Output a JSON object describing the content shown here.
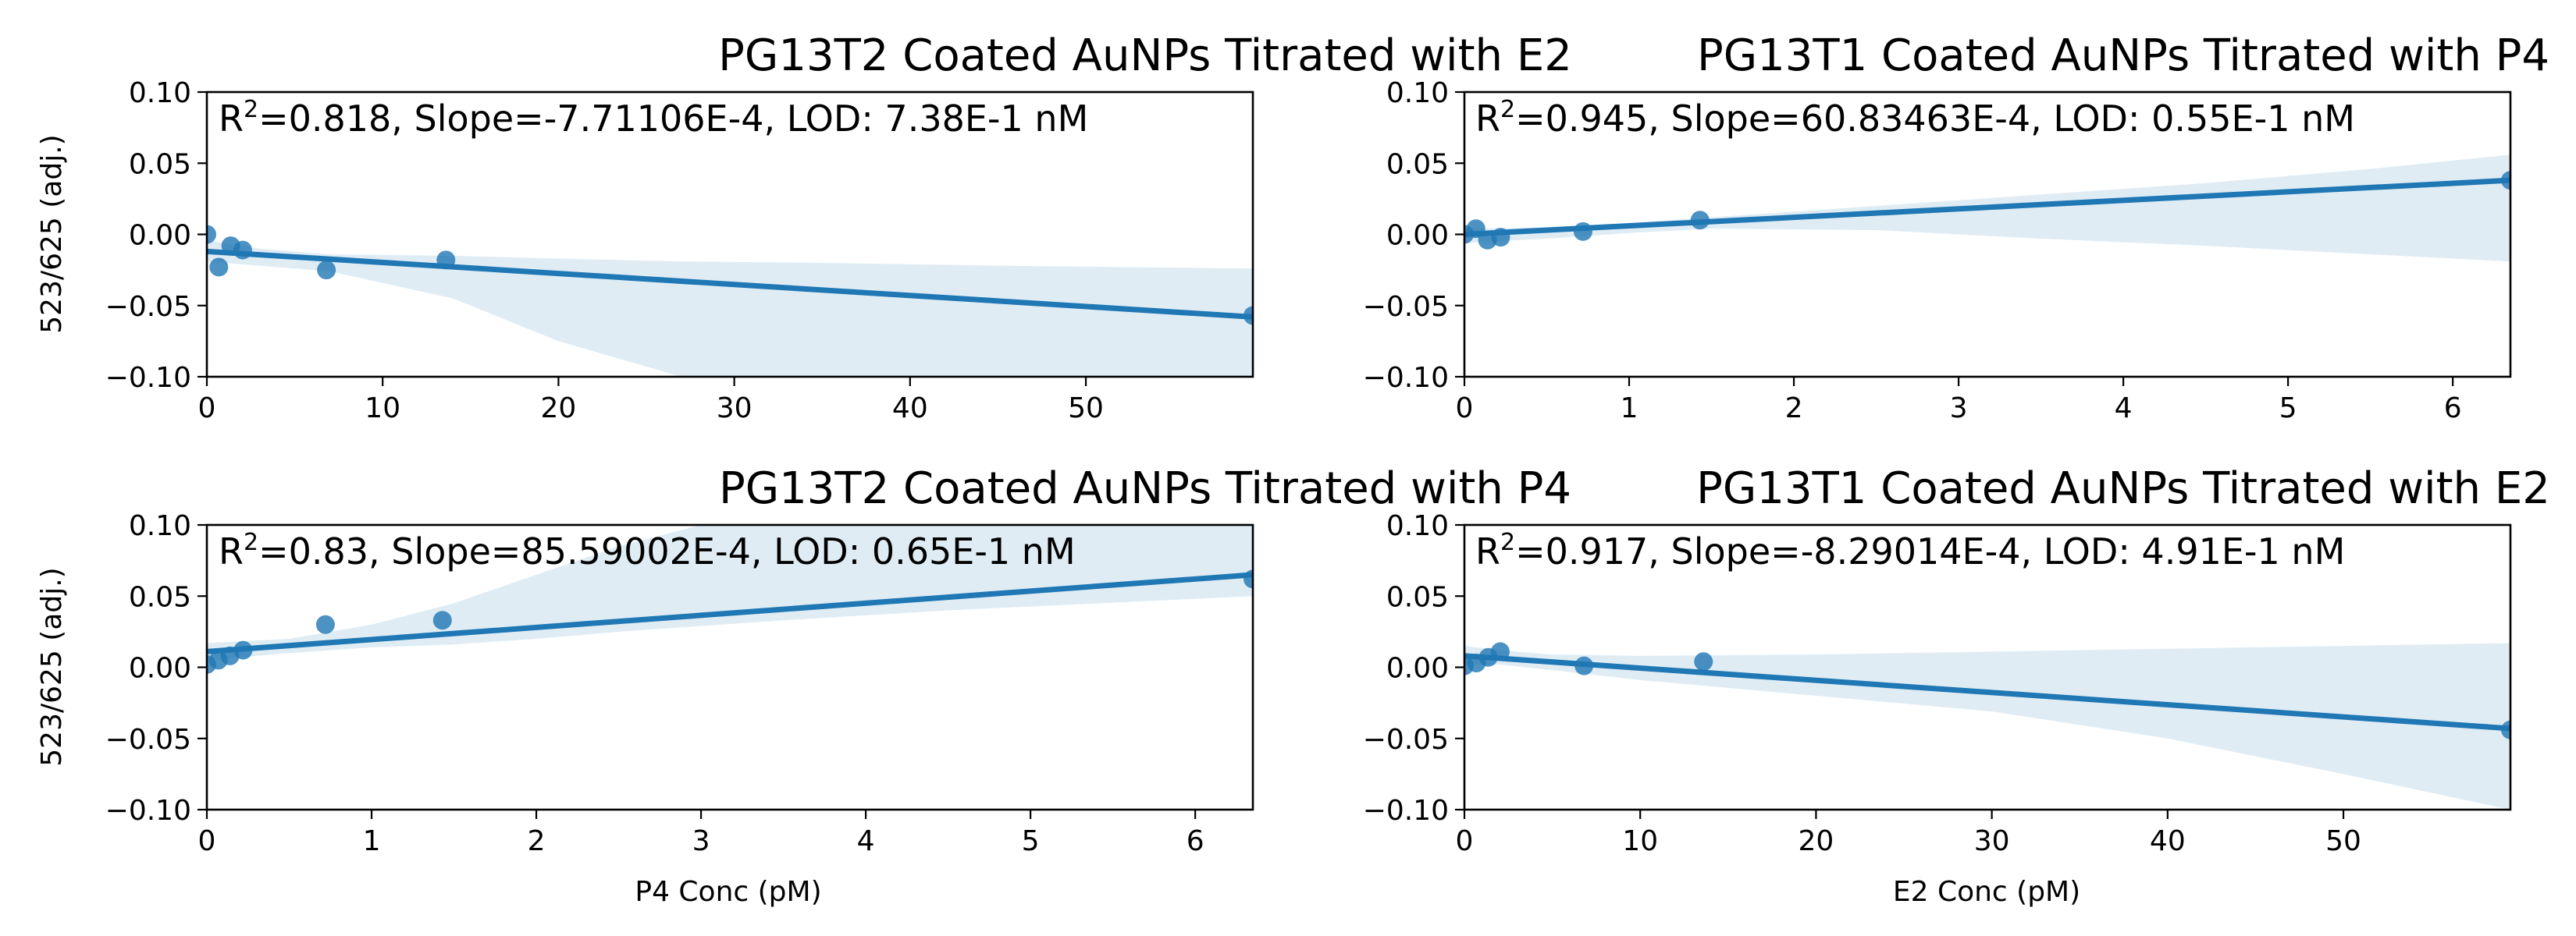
{
  "figure": {
    "line_color": "#1f77b4",
    "point_color": "#1f77b4",
    "band_color": "#1f77b4",
    "band_opacity": 0.14
  },
  "chart_data": [
    {
      "type": "scatter",
      "title": "PG13T2 Coated AuNPs Titrated with E2",
      "xlabel": "",
      "ylabel": "523/625 (adj.)",
      "xlim": [
        0,
        59.5
      ],
      "ylim": [
        -0.1,
        0.1
      ],
      "xticks": [
        0,
        10,
        20,
        30,
        40,
        50
      ],
      "yticks": [
        -0.1,
        -0.05,
        0.0,
        0.05,
        0.1
      ],
      "xtick_labels": [
        "0",
        "10",
        "20",
        "30",
        "40",
        "50"
      ],
      "ytick_labels": [
        "−0.10",
        "−0.05",
        "0.00",
        "0.05",
        "0.10"
      ],
      "annotation": {
        "r2_prefix": "R",
        "r2_sup": "2",
        "text": "=0.818, Slope=-7.71106E-4, LOD: 7.38E-1 nM"
      },
      "points": [
        [
          0,
          0.0
        ],
        [
          0.68,
          -0.023
        ],
        [
          1.36,
          -0.008
        ],
        [
          2.04,
          -0.011
        ],
        [
          6.8,
          -0.025
        ],
        [
          13.6,
          -0.018
        ],
        [
          59.5,
          -0.057
        ]
      ],
      "fit": {
        "x": [
          0,
          59.5
        ],
        "y": [
          -0.012,
          -0.058
        ]
      },
      "band": {
        "x": [
          0,
          1,
          3,
          7,
          14,
          20,
          27,
          35,
          45,
          59.5
        ],
        "upper": [
          -0.004,
          -0.006,
          -0.01,
          -0.014,
          -0.015,
          -0.017,
          -0.019,
          -0.02,
          -0.022,
          -0.024
        ],
        "lower": [
          -0.019,
          -0.02,
          -0.022,
          -0.026,
          -0.045,
          -0.075,
          -0.1,
          -0.13,
          -0.17,
          -0.22
        ]
      }
    },
    {
      "type": "scatter",
      "title": "PG13T1 Coated AuNPs Titrated with P4",
      "xlabel": "",
      "ylabel": "",
      "xlim": [
        0,
        6.35
      ],
      "ylim": [
        -0.1,
        0.1
      ],
      "xticks": [
        0,
        1,
        2,
        3,
        4,
        5,
        6
      ],
      "yticks": [
        -0.1,
        -0.05,
        0.0,
        0.05,
        0.1
      ],
      "xtick_labels": [
        "0",
        "1",
        "2",
        "3",
        "4",
        "5",
        "6"
      ],
      "ytick_labels": [
        "−0.10",
        "−0.05",
        "0.00",
        "0.05",
        "0.10"
      ],
      "annotation": {
        "r2_prefix": "R",
        "r2_sup": "2",
        "text": "=0.945, Slope=60.83463E-4, LOD: 0.55E-1 nM"
      },
      "points": [
        [
          0,
          0.0
        ],
        [
          0.07,
          0.004
        ],
        [
          0.14,
          -0.004
        ],
        [
          0.22,
          -0.002
        ],
        [
          0.72,
          0.002
        ],
        [
          1.43,
          0.01
        ],
        [
          6.35,
          0.038
        ]
      ],
      "fit": {
        "x": [
          0,
          6.35
        ],
        "y": [
          0.0,
          0.038
        ]
      },
      "band": {
        "x": [
          0,
          0.5,
          1,
          1.5,
          2.5,
          3.5,
          4.5,
          5.5,
          6.35
        ],
        "upper": [
          0.004,
          0.005,
          0.008,
          0.012,
          0.02,
          0.028,
          0.036,
          0.046,
          0.056
        ],
        "lower": [
          -0.006,
          -0.003,
          0.001,
          0.004,
          0.003,
          -0.003,
          -0.008,
          -0.014,
          -0.019
        ]
      }
    },
    {
      "type": "scatter",
      "title": "PG13T2 Coated AuNPs Titrated with P4",
      "xlabel": "P4 Conc (pM)",
      "ylabel": "523/625 (adj.)",
      "xlim": [
        0,
        6.35
      ],
      "ylim": [
        -0.1,
        0.1
      ],
      "xticks": [
        0,
        1,
        2,
        3,
        4,
        5,
        6
      ],
      "yticks": [
        -0.1,
        -0.05,
        0.0,
        0.05,
        0.1
      ],
      "xtick_labels": [
        "0",
        "1",
        "2",
        "3",
        "4",
        "5",
        "6"
      ],
      "ytick_labels": [
        "−0.10",
        "−0.05",
        "0.00",
        "0.05",
        "0.10"
      ],
      "annotation": {
        "r2_prefix": "R",
        "r2_sup": "2",
        "text": "=0.83, Slope=85.59002E-4, LOD: 0.65E-1 nM"
      },
      "points": [
        [
          0,
          0.002
        ],
        [
          0.07,
          0.005
        ],
        [
          0.14,
          0.008
        ],
        [
          0.22,
          0.012
        ],
        [
          0.72,
          0.03
        ],
        [
          1.43,
          0.033
        ],
        [
          6.35,
          0.062
        ]
      ],
      "fit": {
        "x": [
          0,
          6.35
        ],
        "y": [
          0.011,
          0.065
        ]
      },
      "band": {
        "x": [
          0,
          0.5,
          1,
          1.5,
          2,
          2.5,
          3.5,
          4.5,
          6.35
        ],
        "upper": [
          0.017,
          0.02,
          0.03,
          0.045,
          0.065,
          0.085,
          0.115,
          0.14,
          0.2
        ],
        "lower": [
          0.005,
          0.01,
          0.014,
          0.016,
          0.02,
          0.025,
          0.033,
          0.04,
          0.05
        ]
      }
    },
    {
      "type": "scatter",
      "title": "PG13T1 Coated AuNPs Titrated with E2",
      "xlabel": "E2 Conc (pM)",
      "ylabel": "",
      "xlim": [
        0,
        59.5
      ],
      "ylim": [
        -0.1,
        0.1
      ],
      "xticks": [
        0,
        10,
        20,
        30,
        40,
        50
      ],
      "yticks": [
        -0.1,
        -0.05,
        0.0,
        0.05,
        0.1
      ],
      "xtick_labels": [
        "0",
        "10",
        "20",
        "30",
        "40",
        "50"
      ],
      "ytick_labels": [
        "−0.10",
        "−0.05",
        "0.00",
        "0.05",
        "0.10"
      ],
      "annotation": {
        "r2_prefix": "R",
        "r2_sup": "2",
        "text": "=0.917, Slope=-8.29014E-4, LOD: 4.91E-1 nM"
      },
      "points": [
        [
          0,
          0.001
        ],
        [
          0.68,
          0.003
        ],
        [
          1.36,
          0.007
        ],
        [
          2.04,
          0.011
        ],
        [
          6.8,
          0.001
        ],
        [
          13.6,
          0.004
        ],
        [
          59.5,
          -0.044
        ]
      ],
      "fit": {
        "x": [
          0,
          59.5
        ],
        "y": [
          0.008,
          -0.043
        ]
      },
      "band": {
        "x": [
          0,
          2,
          5,
          10,
          20,
          30,
          40,
          50,
          59.5
        ],
        "upper": [
          0.015,
          0.012,
          0.009,
          0.008,
          0.009,
          0.011,
          0.013,
          0.015,
          0.017
        ],
        "lower": [
          0.002,
          0.002,
          -0.002,
          -0.009,
          -0.02,
          -0.031,
          -0.05,
          -0.075,
          -0.1
        ]
      }
    }
  ]
}
